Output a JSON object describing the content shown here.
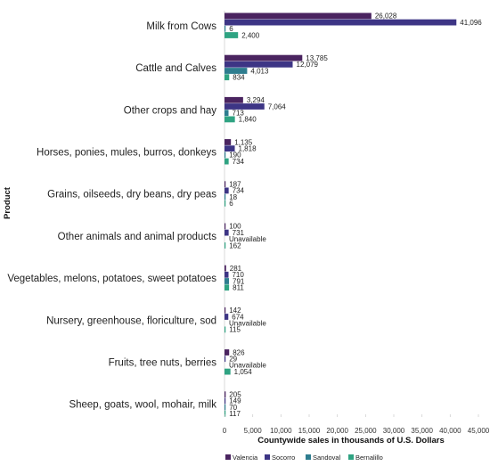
{
  "chart_data": {
    "type": "bar",
    "orientation": "horizontal",
    "xlabel": "Countywide sales in thousands of U.S. Dollars",
    "ylabel": "Product",
    "xlim": [
      0,
      45000
    ],
    "xticks": [
      0,
      5000,
      10000,
      15000,
      20000,
      25000,
      30000,
      35000,
      40000,
      45000
    ],
    "xtick_labels": [
      "0",
      "5,000",
      "10,000",
      "15,000",
      "20,000",
      "25,000",
      "30,000",
      "35,000",
      "40,000",
      "45,000"
    ],
    "grid": false,
    "legend_position": "bottom",
    "categories": [
      "Milk from Cows",
      "Cattle and Calves",
      "Other crops and hay",
      "Horses, ponies, mules, burros, donkeys",
      "Grains, oilseeds, dry beans, dry peas",
      "Other animals and animal products",
      "Vegetables, melons, potatoes, sweet potatoes",
      "Nursery, greenhouse, floriculture, sod",
      "Fruits, tree nuts, berries",
      "Sheep, goats, wool, mohair, milk"
    ],
    "series": [
      {
        "name": "Valencia",
        "color": "#4a2460",
        "values": [
          26028,
          13785,
          3294,
          1135,
          187,
          100,
          281,
          142,
          826,
          205
        ],
        "labels": [
          "26,028",
          "13,785",
          "3,294",
          "1,135",
          "187",
          "100",
          "281",
          "142",
          "826",
          "205"
        ]
      },
      {
        "name": "Socorro",
        "color": "#3d3585",
        "values": [
          41096,
          12079,
          7064,
          1818,
          734,
          731,
          710,
          674,
          29,
          149
        ],
        "labels": [
          "41,096",
          "12,079",
          "7,064",
          "1,818",
          "734",
          "731",
          "710",
          "674",
          "29",
          "149"
        ]
      },
      {
        "name": "Sandoval",
        "color": "#2e7d8f",
        "values": [
          6,
          4013,
          713,
          190,
          18,
          null,
          791,
          null,
          null,
          70
        ],
        "labels": [
          "6",
          "4,013",
          "713",
          "190",
          "18",
          "Unavailable",
          "791",
          "Unavailable",
          "Unavailable",
          "70"
        ]
      },
      {
        "name": "Bernalillo",
        "color": "#2fa382",
        "values": [
          2400,
          834,
          1840,
          734,
          6,
          162,
          811,
          115,
          1054,
          117
        ],
        "labels": [
          "2,400",
          "834",
          "1,840",
          "734",
          "6",
          "162",
          "811",
          "115",
          "1,054",
          "117"
        ]
      }
    ]
  }
}
